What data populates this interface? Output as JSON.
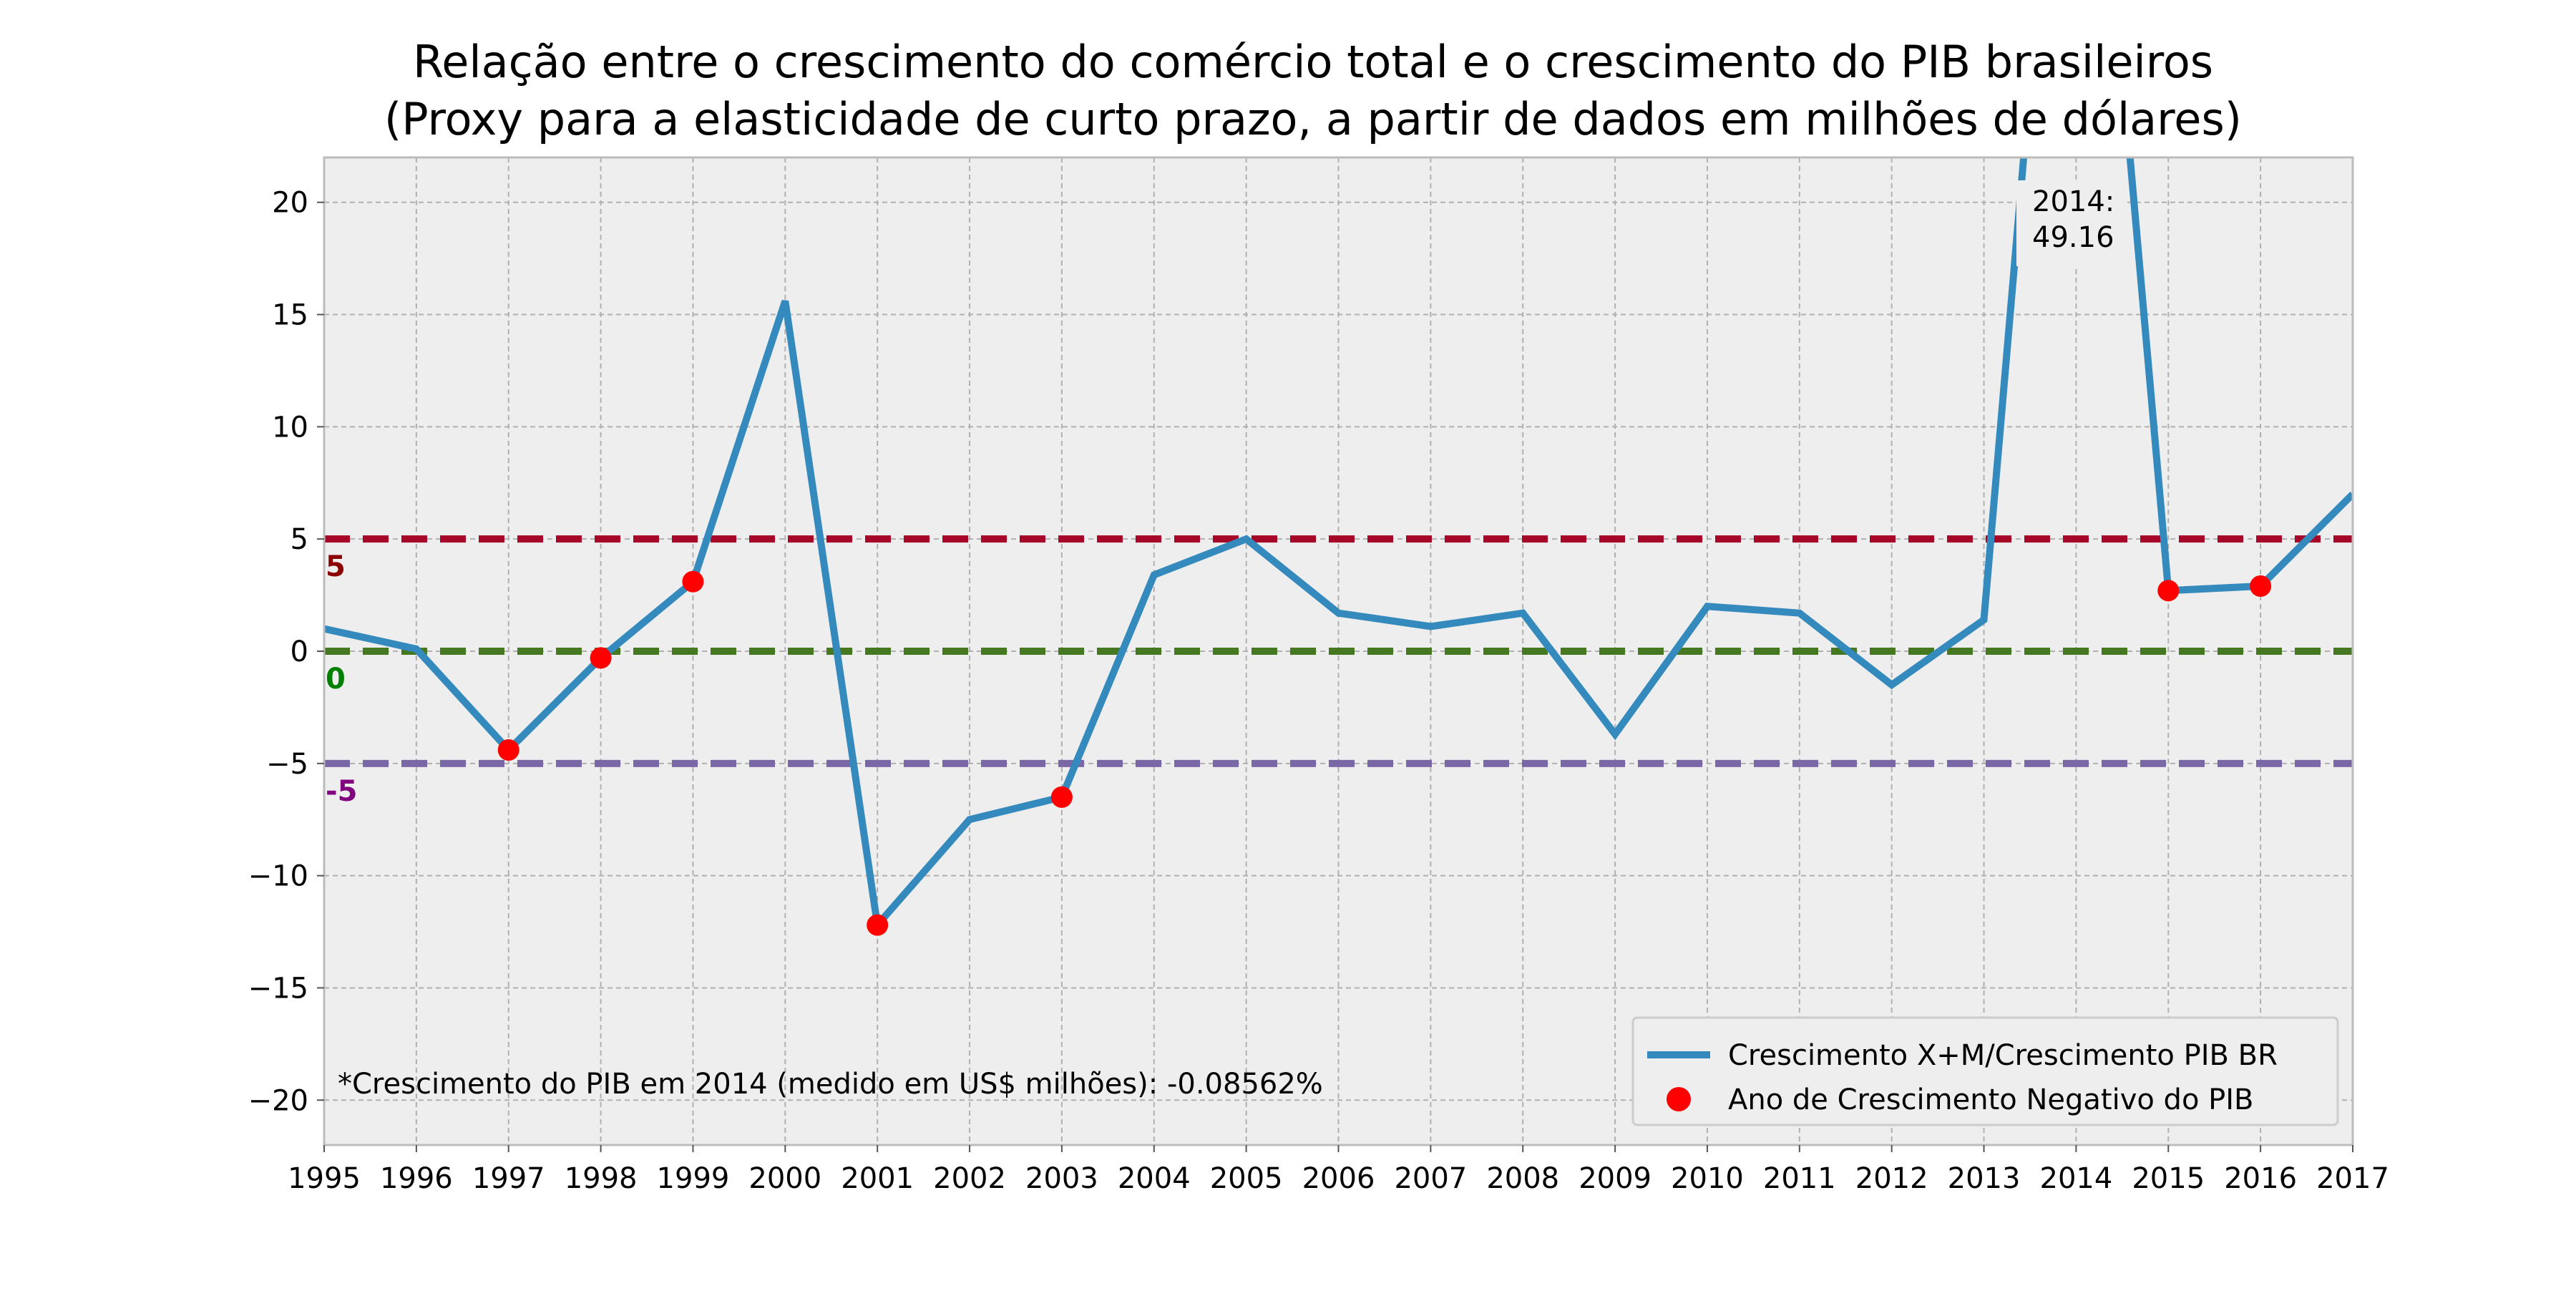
{
  "chart_data": {
    "type": "line",
    "title": "Relação entre o crescimento do comércio total e o crescimento do PIB brasileiros",
    "subtitle": "(Proxy para a elasticidade de curto prazo, a partir de dados em milhões de dólares)",
    "xlabel": "",
    "ylabel": "",
    "x": [
      1995,
      1996,
      1997,
      1998,
      1999,
      2000,
      2001,
      2002,
      2003,
      2004,
      2005,
      2006,
      2007,
      2008,
      2009,
      2010,
      2011,
      2012,
      2013,
      2014,
      2015,
      2016,
      2017
    ],
    "xlim": [
      1995,
      2017
    ],
    "ylim": [
      -22,
      22
    ],
    "x_ticks": [
      "1995",
      "1996",
      "1997",
      "1998",
      "1999",
      "2000",
      "2001",
      "2002",
      "2003",
      "2004",
      "2005",
      "2006",
      "2007",
      "2008",
      "2009",
      "2010",
      "2011",
      "2012",
      "2013",
      "2014",
      "2015",
      "2016",
      "2017"
    ],
    "y_ticks": [
      -20,
      -15,
      -10,
      -5,
      0,
      5,
      10,
      15,
      20
    ],
    "y_tick_labels": [
      "−20",
      "−15",
      "−10",
      "−5",
      "0",
      "5",
      "10",
      "15",
      "20"
    ],
    "grid": true,
    "legend_position": "bottom-right",
    "series": [
      {
        "name": "Crescimento X+M/Crescimento PIB BR",
        "type": "line",
        "color": "#348abd",
        "values": [
          1.0,
          0.1,
          -4.4,
          -0.3,
          3.1,
          15.6,
          -12.2,
          -7.5,
          -6.5,
          3.4,
          5.0,
          1.7,
          1.1,
          1.7,
          -3.7,
          2.0,
          1.7,
          -1.5,
          1.4,
          49.16,
          2.7,
          2.9,
          7.0
        ]
      },
      {
        "name": "Ano de Crescimento Negativo do PIB",
        "type": "scatter",
        "color": "#ff0000",
        "points": [
          {
            "x": 1997,
            "y": -4.4
          },
          {
            "x": 1998,
            "y": -0.3
          },
          {
            "x": 1999,
            "y": 3.1
          },
          {
            "x": 2001,
            "y": -12.2
          },
          {
            "x": 2003,
            "y": -6.5
          },
          {
            "x": 2015,
            "y": 2.7
          },
          {
            "x": 2016,
            "y": 2.9
          }
        ]
      }
    ],
    "reference_lines": [
      {
        "y": 5,
        "label": "5",
        "color": "#a60628",
        "label_color": "#8b0000"
      },
      {
        "y": 0,
        "label": "0",
        "color": "#467821",
        "label_color": "#008000"
      },
      {
        "y": -5,
        "label": "-5",
        "color": "#7a68a6",
        "label_color": "#800080"
      }
    ],
    "annotations": [
      {
        "text_line1": "2014:",
        "text_line2": "49.16"
      },
      {
        "text": "*Crescimento do PIB em 2014 (medido em US$ milhões): -0.08562%"
      }
    ],
    "colors": {
      "plot_background": "#eeeeee",
      "grid": "#b0b0b0",
      "frame": "#bcbcbc",
      "text": "#000000"
    }
  }
}
